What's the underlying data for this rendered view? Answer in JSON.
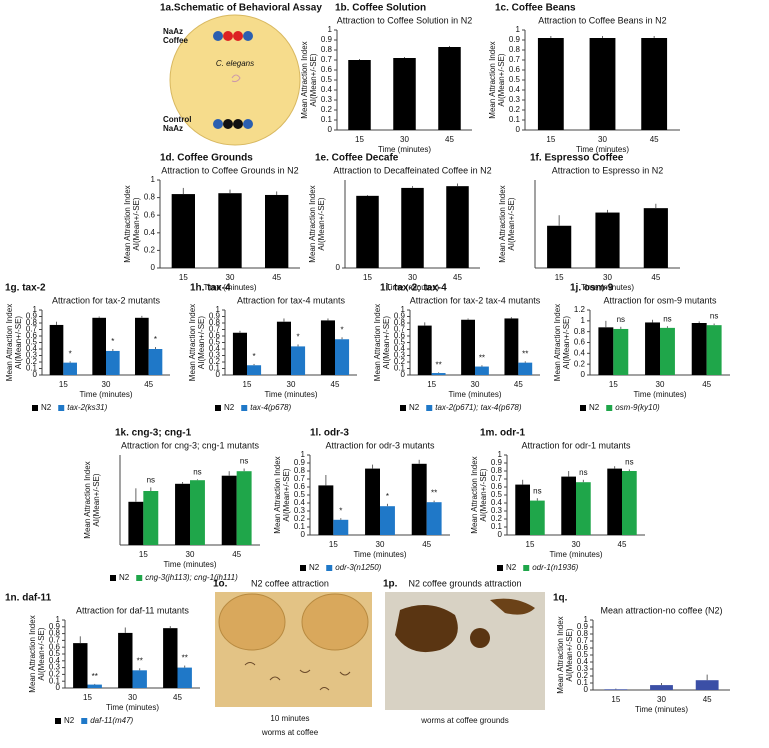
{
  "panels": {
    "a": {
      "title": "1a.Schematic of Behavioral Assay",
      "top_label": [
        "NaAz",
        "Coffee"
      ],
      "center_label": "C. elegans",
      "bottom_label": [
        "Control",
        "NaAz"
      ]
    },
    "o": {
      "panel": "1o.",
      "title": "N2 coffee attraction",
      "caption": [
        "10 minutes",
        "worms at coffee"
      ]
    },
    "p": {
      "panel": "1p.",
      "title": "N2 coffee grounds attraction",
      "caption": "worms at coffee grounds"
    }
  },
  "chart_data": [
    {
      "type": "bar",
      "panel": "1b. Coffee Solution",
      "title": "Attraction to Coffee Solution in N2",
      "ylabel": [
        "Mean Attraction Index",
        "AI(Mean+/-SE)"
      ],
      "xlabel": "Time (minutes)",
      "categories": [
        "15",
        "30",
        "45"
      ],
      "ylim": [
        0,
        1
      ],
      "yticks": [
        0,
        0.1,
        0.2,
        0.3,
        0.4,
        0.5,
        0.6,
        0.7,
        0.8,
        0.9,
        1
      ],
      "series": [
        {
          "color": "#000000",
          "values": [
            0.7,
            0.72,
            0.83
          ],
          "errors": [
            0.01,
            0.01,
            0.01
          ]
        }
      ]
    },
    {
      "type": "bar",
      "panel": "1c. Coffee Beans",
      "title": "Attraction to Coffee Beans in N2",
      "ylabel": [
        "Mean Attraction Index",
        "AI(Mean+/-SE)"
      ],
      "xlabel": "Time (minutes)",
      "categories": [
        "15",
        "30",
        "45"
      ],
      "ylim": [
        0,
        1
      ],
      "yticks": [
        0,
        0.1,
        0.2,
        0.3,
        0.4,
        0.5,
        0.6,
        0.7,
        0.8,
        0.9,
        1
      ],
      "series": [
        {
          "color": "#000000",
          "values": [
            0.92,
            0.92,
            0.92
          ],
          "errors": [
            0.02,
            0.02,
            0.02
          ]
        }
      ]
    },
    {
      "type": "bar",
      "panel": "1d. Coffee Grounds",
      "title": "Attraction to Coffee Grounds in N2",
      "ylabel": [
        "Mean Attraction Index",
        "AI(Mean+/-SE)"
      ],
      "xlabel": "Time (minutes)",
      "categories": [
        "15",
        "30",
        "45"
      ],
      "ylim": [
        0,
        1
      ],
      "yticks": [
        0,
        0.2,
        0.4,
        0.6,
        0.8,
        1
      ],
      "series": [
        {
          "color": "#000000",
          "values": [
            0.84,
            0.85,
            0.83
          ],
          "errors": [
            0.07,
            0.04,
            0.04
          ]
        }
      ]
    },
    {
      "type": "bar",
      "panel": "1e. Coffee Decafe",
      "title": "Attraction to Decaffeinated Coffee in N2",
      "ylabel": [
        "Mean Attraction Index",
        "AI(Mean+/-SE)"
      ],
      "xlabel": "Time (minutes)",
      "categories": [
        "15",
        "30",
        "45"
      ],
      "ylim": [
        0,
        1
      ],
      "yticks": [
        0
      ],
      "series": [
        {
          "color": "#000000",
          "values": [
            0.82,
            0.91,
            0.93
          ],
          "errors": [
            0.01,
            0.02,
            0.03
          ]
        }
      ]
    },
    {
      "type": "bar",
      "panel": "1f. Espresso Coffee",
      "title": "Attraction to Espresso in N2",
      "ylabel": [
        "Mean Attraction Index",
        "AI(Mean+/-SE)"
      ],
      "xlabel": "Time (minutes)",
      "categories": [
        "15",
        "30",
        "45"
      ],
      "ylim": [
        0,
        1
      ],
      "yticks": [],
      "series": [
        {
          "color": "#000000",
          "values": [
            0.48,
            0.63,
            0.68
          ],
          "errors": [
            0.12,
            0.03,
            0.05
          ]
        }
      ]
    },
    {
      "type": "bar",
      "panel": "1g. tax-2",
      "title": "Attraction for tax-2 mutants",
      "ylabel": [
        "Mean Attraction Index",
        "AI(Mean+/-SE)"
      ],
      "xlabel": "Time (minutes)",
      "categories": [
        "15",
        "30",
        "45"
      ],
      "ylim": [
        0,
        1
      ],
      "yticks": [
        0,
        0.1,
        0.2,
        0.3,
        0.4,
        0.5,
        0.6,
        0.7,
        0.8,
        0.9,
        1
      ],
      "series": [
        {
          "name": "N2",
          "color": "#000000",
          "values": [
            0.77,
            0.88,
            0.88
          ],
          "errors": [
            0.05,
            0.02,
            0.03
          ]
        },
        {
          "name": "tax-2(ks31)",
          "color": "#1f78c8",
          "values": [
            0.19,
            0.37,
            0.4
          ],
          "errors": [
            0.02,
            0.03,
            0.03
          ],
          "significance": [
            "*",
            "*",
            "*"
          ]
        }
      ]
    },
    {
      "type": "bar",
      "panel": "1h. tax-4",
      "title": "Attraction for tax-4 mutants",
      "ylabel": [
        "Mean Attraction Index",
        "AI(Mean+/-SE)"
      ],
      "xlabel": "Time (minutes)",
      "categories": [
        "15",
        "30",
        "45"
      ],
      "ylim": [
        0,
        1
      ],
      "yticks": [
        0,
        0.1,
        0.2,
        0.3,
        0.4,
        0.5,
        0.6,
        0.7,
        0.8,
        0.9,
        1
      ],
      "series": [
        {
          "name": "N2",
          "color": "#000000",
          "values": [
            0.65,
            0.82,
            0.84
          ],
          "errors": [
            0.03,
            0.05,
            0.03
          ]
        },
        {
          "name": "tax-4(p678)",
          "color": "#1f78c8",
          "values": [
            0.15,
            0.44,
            0.55
          ],
          "errors": [
            0.02,
            0.03,
            0.03
          ],
          "significance": [
            "*",
            "*",
            "*"
          ]
        }
      ]
    },
    {
      "type": "bar",
      "panel": "1i. tax-2; tax-4",
      "title": "Attraction for tax-2 tax-4 mutants",
      "ylabel": [
        "Mean Attraction Index",
        "AI(Mean+/-SE)"
      ],
      "xlabel": "Time (minutes)",
      "categories": [
        "15",
        "30",
        "45"
      ],
      "ylim": [
        0,
        1
      ],
      "yticks": [
        0,
        0.1,
        0.2,
        0.3,
        0.4,
        0.5,
        0.6,
        0.7,
        0.8,
        0.9,
        1
      ],
      "series": [
        {
          "name": "N2",
          "color": "#000000",
          "values": [
            0.76,
            0.85,
            0.87
          ],
          "errors": [
            0.05,
            0.02,
            0.02
          ]
        },
        {
          "name": "tax-2(p671); tax-4(p678)",
          "color": "#1f78c8",
          "values": [
            0.03,
            0.13,
            0.19
          ],
          "errors": [
            0.01,
            0.02,
            0.02
          ],
          "significance": [
            "**",
            "**",
            "**"
          ]
        }
      ]
    },
    {
      "type": "bar",
      "panel": "1j. osm-9",
      "title": "Attraction for osm-9 mutants",
      "ylabel": [
        "Mean Attraction Index",
        "AI(Mean+/-SE)"
      ],
      "xlabel": "Time (minutes)",
      "categories": [
        "15",
        "30",
        "45"
      ],
      "ylim": [
        0,
        1.2
      ],
      "yticks": [
        0,
        0.2,
        0.4,
        0.6,
        0.8,
        1,
        1.2
      ],
      "series": [
        {
          "name": "N2",
          "color": "#000000",
          "values": [
            0.88,
            0.97,
            0.96
          ],
          "errors": [
            0.12,
            0.05,
            0.03
          ]
        },
        {
          "name": "osm-9(ky10)",
          "color": "#1fa64a",
          "values": [
            0.85,
            0.87,
            0.92
          ],
          "errors": [
            0.04,
            0.03,
            0.03
          ],
          "significance": [
            "ns",
            "ns",
            "ns"
          ]
        }
      ]
    },
    {
      "type": "bar",
      "panel": "1k. cng-3; cng-1",
      "title": "Attraction for cng-3; cng-1 mutants",
      "ylabel": [
        "Mean Attraction Index",
        "AI(Mean+/-SE)"
      ],
      "xlabel": "Time (minutes)",
      "categories": [
        "15",
        "30",
        "45"
      ],
      "ylim": [
        0,
        1
      ],
      "yticks": [],
      "series": [
        {
          "name": "N2",
          "color": "#000000",
          "values": [
            0.48,
            0.68,
            0.77
          ],
          "errors": [
            0.15,
            0.02,
            0.05
          ]
        },
        {
          "name": "cng-3(jh113); cng-1(jh111)",
          "color": "#1fa64a",
          "values": [
            0.6,
            0.72,
            0.82
          ],
          "errors": [
            0.04,
            0.01,
            0.03
          ],
          "significance": [
            "ns",
            "ns",
            "ns"
          ]
        }
      ]
    },
    {
      "type": "bar",
      "panel": "1l. odr-3",
      "title": "Attraction for odr-3 mutants",
      "ylabel": [
        "Mean Attraction Index",
        "AI(Mean+/-SE)"
      ],
      "xlabel": "Time (minutes)",
      "categories": [
        "15",
        "30",
        "45"
      ],
      "ylim": [
        0,
        1
      ],
      "yticks": [
        0,
        0.1,
        0.2,
        0.3,
        0.4,
        0.5,
        0.6,
        0.7,
        0.8,
        0.9,
        1
      ],
      "series": [
        {
          "name": "N2",
          "color": "#000000",
          "values": [
            0.62,
            0.83,
            0.89
          ],
          "errors": [
            0.13,
            0.05,
            0.05
          ]
        },
        {
          "name": "odr-3(n1250)",
          "color": "#1f78c8",
          "values": [
            0.19,
            0.36,
            0.41
          ],
          "errors": [
            0.02,
            0.03,
            0.02
          ],
          "significance": [
            "*",
            "*",
            "**"
          ]
        }
      ]
    },
    {
      "type": "bar",
      "panel": "1m. odr-1",
      "title": "Attraction for odr-1 mutants",
      "ylabel": [
        "Mean Attraction Index",
        "AI(Mean+/-SE)"
      ],
      "xlabel": "Time (minutes)",
      "categories": [
        "15",
        "30",
        "45"
      ],
      "ylim": [
        0,
        1
      ],
      "yticks": [
        0,
        0.1,
        0.2,
        0.3,
        0.4,
        0.5,
        0.6,
        0.7,
        0.8,
        0.9,
        1
      ],
      "series": [
        {
          "name": "N2",
          "color": "#000000",
          "values": [
            0.63,
            0.73,
            0.83
          ],
          "errors": [
            0.06,
            0.07,
            0.03
          ]
        },
        {
          "name": "odr-1(n1936)",
          "color": "#1fa64a",
          "values": [
            0.43,
            0.66,
            0.8
          ],
          "errors": [
            0.03,
            0.03,
            0.02
          ],
          "significance": [
            "ns",
            "ns",
            "ns"
          ]
        }
      ]
    },
    {
      "type": "bar",
      "panel": "1n.  daf-11",
      "title": "Attraction for daf-11 mutants",
      "ylabel": [
        "Mean Attraction Index",
        "AI(Mean+/-SE)"
      ],
      "xlabel": "Time (minutes)",
      "categories": [
        "15",
        "30",
        "45"
      ],
      "ylim": [
        0,
        1
      ],
      "yticks": [
        0,
        0.1,
        0.2,
        0.3,
        0.4,
        0.5,
        0.6,
        0.7,
        0.8,
        0.9,
        1
      ],
      "series": [
        {
          "name": "N2",
          "color": "#000000",
          "values": [
            0.66,
            0.81,
            0.88
          ],
          "errors": [
            0.1,
            0.08,
            0.03
          ]
        },
        {
          "name": "daf-11(m47)",
          "color": "#1f78c8",
          "values": [
            0.05,
            0.26,
            0.3
          ],
          "errors": [
            0.01,
            0.03,
            0.03
          ],
          "significance": [
            "**",
            "**",
            "**"
          ]
        }
      ]
    },
    {
      "type": "bar",
      "panel": "1q.",
      "title": "Mean attraction-no coffee (N2)",
      "ylabel": [
        "Mean Attraction Index",
        "AI(Mean+/-SE)"
      ],
      "xlabel": "Time (minutes)",
      "categories": [
        "15",
        "30",
        "45"
      ],
      "ylim": [
        0,
        1
      ],
      "yticks": [
        0,
        0.1,
        0.2,
        0.3,
        0.4,
        0.5,
        0.6,
        0.7,
        0.8,
        0.9,
        1
      ],
      "series": [
        {
          "color": "#3b4fa6",
          "values": [
            0.01,
            0.07,
            0.14
          ],
          "errors": [
            0.01,
            0.03,
            0.08
          ]
        }
      ]
    }
  ]
}
